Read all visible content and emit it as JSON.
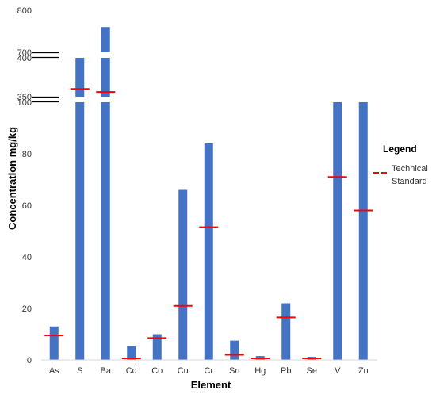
{
  "chart_data": {
    "type": "bar",
    "xlabel": "Element",
    "ylabel": "Concentration mg/kg",
    "axis_break": {
      "segments": [
        {
          "range": [
            0,
            100
          ],
          "ticks": [
            0,
            20,
            40,
            60,
            80,
            100
          ]
        },
        {
          "range": [
            350,
            400
          ],
          "ticks": [
            350,
            400
          ]
        },
        {
          "range": [
            700,
            800
          ],
          "ticks": [
            700,
            800
          ]
        }
      ]
    },
    "categories": [
      "As",
      "S",
      "Ba",
      "Cd",
      "Co",
      "Cu",
      "Cr",
      "Sn",
      "Hg",
      "Pb",
      "Se",
      "V",
      "Zn"
    ],
    "series": [
      {
        "values": [
          13,
          400,
          760,
          5.3,
          10,
          66,
          84,
          7.5,
          1.5,
          22,
          1.2,
          100,
          100
        ],
        "color": "#4472c4"
      },
      {
        "name": "Technical Standard",
        "marker": "dash",
        "values": [
          9.5,
          360,
          356,
          0.6,
          8.5,
          21,
          51.5,
          2,
          0.6,
          16.5,
          0.6,
          71,
          58
        ],
        "color": "#ff0000"
      }
    ],
    "legend": {
      "title": "Legend",
      "label_lines": [
        "Technical",
        "Standard"
      ],
      "position": "right"
    },
    "grid": false
  }
}
